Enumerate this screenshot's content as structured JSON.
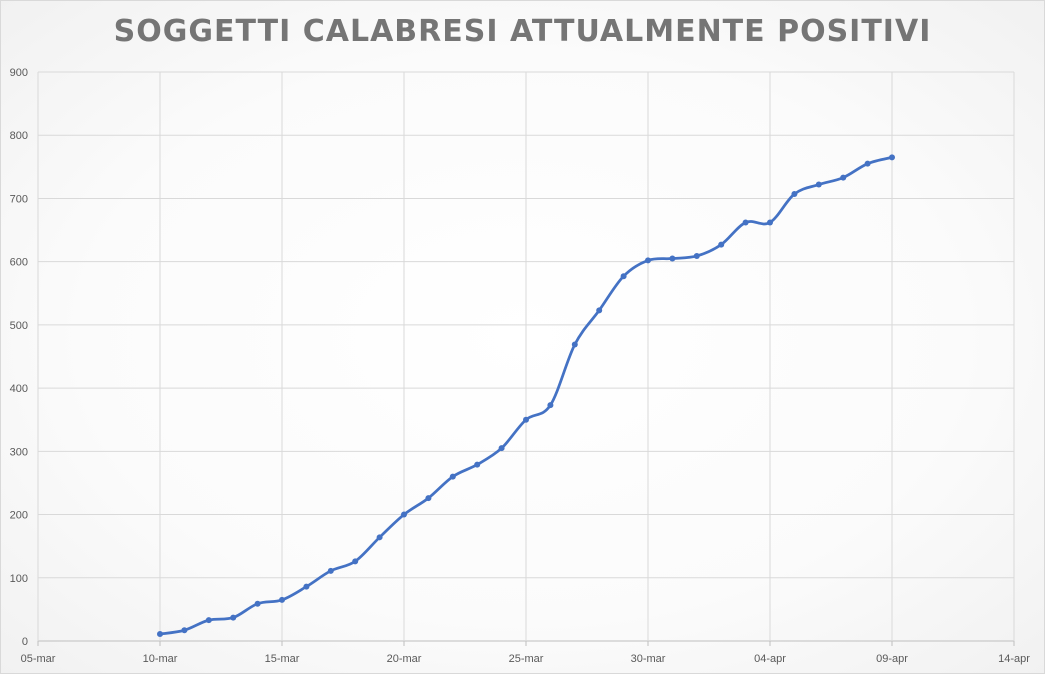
{
  "chart_data": {
    "type": "line",
    "title": "SOGGETTI CALABRESI ATTUALMENTE POSITIVI",
    "xlabel": "",
    "ylabel": "",
    "ylim": [
      0,
      900
    ],
    "y_ticks": [
      0,
      100,
      200,
      300,
      400,
      500,
      600,
      700,
      800,
      900
    ],
    "x_tick_labels": [
      "05-mar",
      "10-mar",
      "15-mar",
      "20-mar",
      "25-mar",
      "30-mar",
      "04-apr",
      "09-apr",
      "14-apr"
    ],
    "x_tick_dates": [
      "2020-03-05",
      "2020-03-10",
      "2020-03-15",
      "2020-03-20",
      "2020-03-25",
      "2020-03-30",
      "2020-04-04",
      "2020-04-09",
      "2020-04-14"
    ],
    "xlim": [
      "2020-03-05",
      "2020-04-14"
    ],
    "grid": true,
    "smooth": true,
    "markers": true,
    "series": [
      {
        "color": "#4472c4",
        "points": [
          {
            "x": "2020-03-10",
            "y": 11
          },
          {
            "x": "2020-03-11",
            "y": 17
          },
          {
            "x": "2020-03-12",
            "y": 33
          },
          {
            "x": "2020-03-13",
            "y": 37
          },
          {
            "x": "2020-03-14",
            "y": 59
          },
          {
            "x": "2020-03-15",
            "y": 65
          },
          {
            "x": "2020-03-16",
            "y": 86
          },
          {
            "x": "2020-03-17",
            "y": 111
          },
          {
            "x": "2020-03-18",
            "y": 126
          },
          {
            "x": "2020-03-19",
            "y": 164
          },
          {
            "x": "2020-03-20",
            "y": 200
          },
          {
            "x": "2020-03-21",
            "y": 226
          },
          {
            "x": "2020-03-22",
            "y": 260
          },
          {
            "x": "2020-03-23",
            "y": 279
          },
          {
            "x": "2020-03-24",
            "y": 305
          },
          {
            "x": "2020-03-25",
            "y": 350
          },
          {
            "x": "2020-03-26",
            "y": 373
          },
          {
            "x": "2020-03-27",
            "y": 469
          },
          {
            "x": "2020-03-28",
            "y": 523
          },
          {
            "x": "2020-03-29",
            "y": 577
          },
          {
            "x": "2020-03-30",
            "y": 602
          },
          {
            "x": "2020-03-31",
            "y": 605
          },
          {
            "x": "2020-04-01",
            "y": 609
          },
          {
            "x": "2020-04-02",
            "y": 627
          },
          {
            "x": "2020-04-03",
            "y": 662
          },
          {
            "x": "2020-04-04",
            "y": 662
          },
          {
            "x": "2020-04-05",
            "y": 707
          },
          {
            "x": "2020-04-06",
            "y": 722
          },
          {
            "x": "2020-04-07",
            "y": 733
          },
          {
            "x": "2020-04-08",
            "y": 755
          },
          {
            "x": "2020-04-09",
            "y": 765
          }
        ]
      }
    ]
  }
}
